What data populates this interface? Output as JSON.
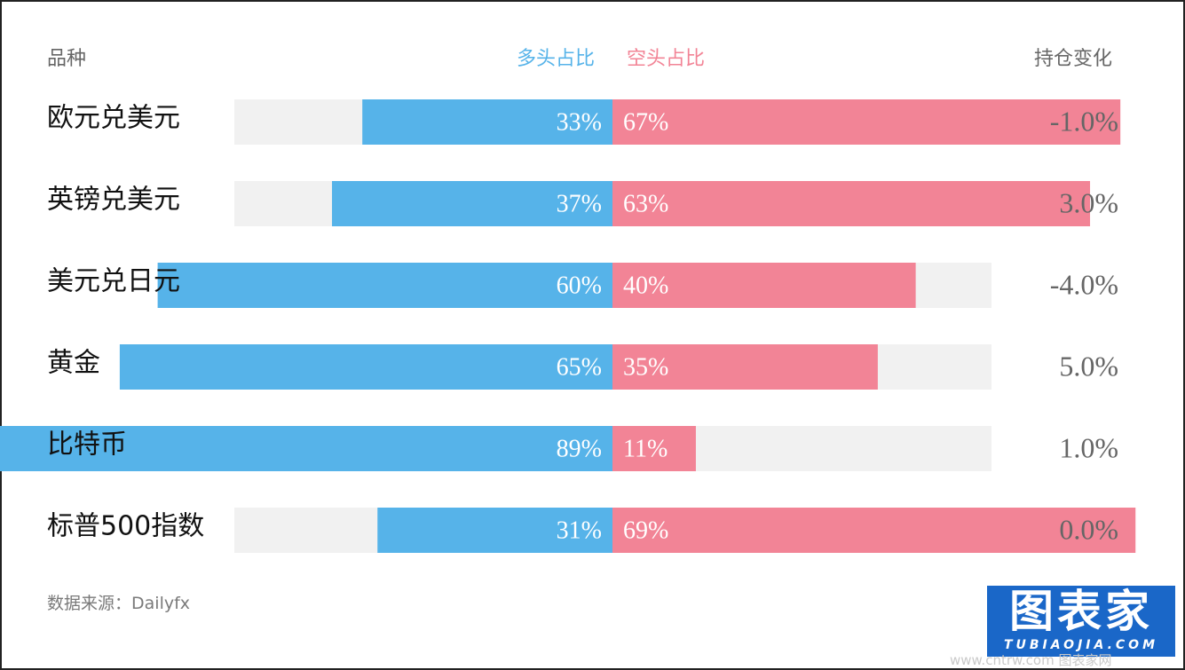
{
  "header": {
    "name_col": "品种",
    "long_label": "多头占比",
    "short_label": "空头占比",
    "change_col": "持仓变化"
  },
  "colors": {
    "long": "#56b3e9",
    "short": "#f28496",
    "track": "#f1f1f1"
  },
  "chart_data": {
    "type": "bar",
    "orientation": "horizontal-diverging",
    "categories": [
      "欧元兑美元",
      "英镑兑美元",
      "美元兑日元",
      "黄金",
      "比特币",
      "标普500指数"
    ],
    "series": [
      {
        "name": "多头占比",
        "values": [
          33,
          37,
          60,
          65,
          89,
          31
        ],
        "labels": [
          "33%",
          "37%",
          "60%",
          "65%",
          "89%",
          "31%"
        ]
      },
      {
        "name": "空头占比",
        "values": [
          67,
          63,
          40,
          35,
          11,
          69
        ],
        "labels": [
          "67%",
          "63%",
          "40%",
          "35%",
          "11%",
          "69%"
        ]
      }
    ],
    "position_change": [
      "-1.0%",
      "3.0%",
      "-4.0%",
      "5.0%",
      "1.0%",
      "0.0%"
    ],
    "xlim": [
      0,
      100
    ],
    "legend": "top-center",
    "grid": false
  },
  "source": {
    "label": "数据来源：",
    "value": "Dailyfx"
  },
  "logo": {
    "main": "图表家",
    "sub": "TUBIAOJIA.COM"
  },
  "watermark": "www.cntrw.com 图表家网"
}
